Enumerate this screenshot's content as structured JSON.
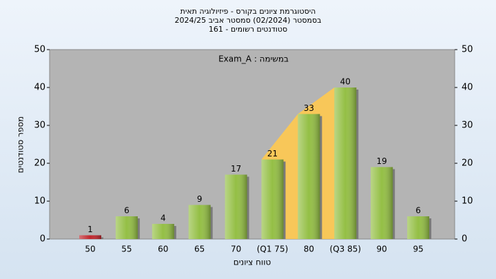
{
  "chart_data": {
    "type": "bar",
    "title": "היסטוגרמת ציונים בקורס - פיזיולוגיה תאית",
    "subtitle": "בסמסטר  (02/2024)  סמסטר אביב 2024/25",
    "subtitle2": "סטודנטים רשומים - 161",
    "annotation": "במשימה : Exam_A",
    "xlabel": "טווח ציונים",
    "ylabel": "מספר סטודנטים",
    "categories": [
      "50",
      "55",
      "60",
      "65",
      "70",
      "(Q1 75)",
      "80",
      "(Q3 85)",
      "90",
      "95"
    ],
    "values": [
      1,
      6,
      4,
      9,
      17,
      21,
      33,
      40,
      19,
      6
    ],
    "colors": [
      "#c0272d",
      "#94bf45",
      "#94bf45",
      "#94bf45",
      "#94bf45",
      "#94bf45",
      "#94bf45",
      "#94bf45",
      "#94bf45",
      "#94bf45"
    ],
    "quartile_color": "#ffc94f",
    "ylim": [
      0,
      50
    ],
    "yticks": [
      0,
      10,
      20,
      30,
      40,
      50
    ],
    "y2lim": [
      0,
      50
    ],
    "y2ticks": [
      0,
      10,
      20,
      30,
      40,
      50
    ]
  }
}
